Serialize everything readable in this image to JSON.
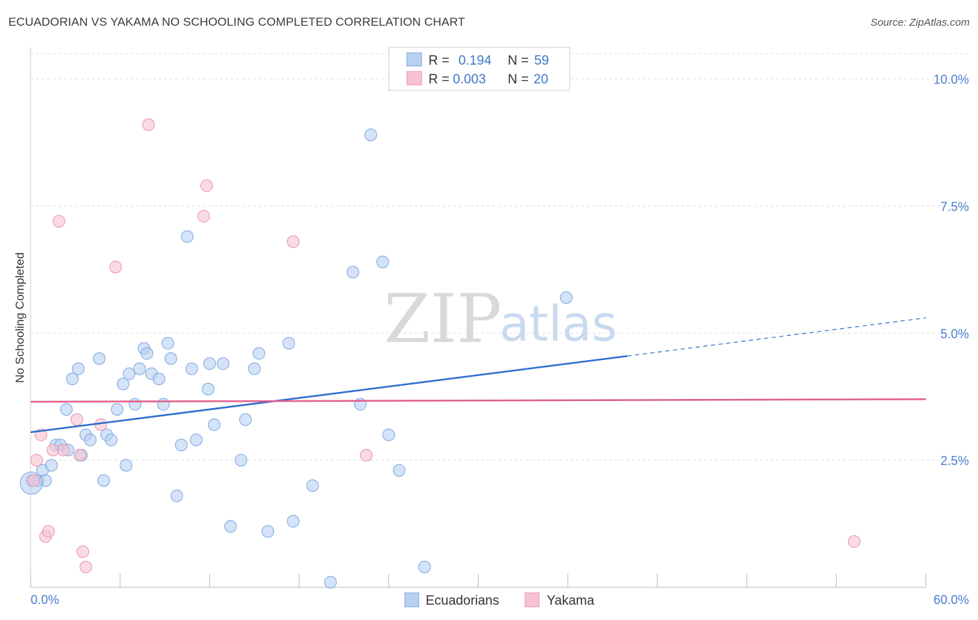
{
  "header": {
    "title": "ECUADORIAN VS YAKAMA NO SCHOOLING COMPLETED CORRELATION CHART",
    "source": "Source: ZipAtlas.com"
  },
  "watermark": {
    "zip": "ZIP",
    "atlas": "atlas"
  },
  "colors": {
    "blue_fill": "#b8d1f2",
    "blue_stroke": "#7ba6e0",
    "blue_line": "#2f6fd0",
    "pink_fill": "#f7c3d2",
    "pink_stroke": "#e892ab",
    "pink_line": "#e0608a",
    "grid": "#dddddd",
    "tick_text": "#4a7fd0"
  },
  "legend": {
    "rows": [
      {
        "r_label": "R =",
        "r_value": "0.194",
        "n_label": "N =",
        "n_value": "59"
      },
      {
        "r_label": "R =",
        "r_value": "0.003",
        "n_label": "N =",
        "n_value": "20"
      }
    ]
  },
  "bottom_legend": {
    "series1": "Ecuadorians",
    "series2": "Yakama"
  },
  "chart_data": {
    "type": "scatter",
    "title": "ECUADORIAN VS YAKAMA NO SCHOOLING COMPLETED CORRELATION CHART",
    "xlabel": "",
    "ylabel": "No Schooling Completed",
    "xlim": [
      0,
      60
    ],
    "ylim": [
      0,
      10.5
    ],
    "x_tick_labels": [
      "0.0%",
      "60.0%"
    ],
    "y_ticks": [
      {
        "value": 2.5,
        "label": "2.5%"
      },
      {
        "value": 5.0,
        "label": "5.0%"
      },
      {
        "value": 7.5,
        "label": "7.5%"
      },
      {
        "value": 10.0,
        "label": "10.0%"
      }
    ],
    "series": [
      {
        "name": "Ecuadorians",
        "R": 0.194,
        "N": 59,
        "trend": {
          "x0": 0,
          "y0": 3.05,
          "x1": 40,
          "y1": 4.55,
          "dash_x1": 60,
          "dash_y1": 5.3
        },
        "points": [
          [
            0.1,
            2.1
          ],
          [
            0.5,
            2.1
          ],
          [
            0.8,
            2.3
          ],
          [
            1.0,
            2.1
          ],
          [
            1.4,
            2.4
          ],
          [
            1.7,
            2.8
          ],
          [
            2.0,
            2.8
          ],
          [
            2.4,
            3.5
          ],
          [
            2.5,
            2.7
          ],
          [
            2.8,
            4.1
          ],
          [
            3.2,
            4.3
          ],
          [
            3.4,
            2.6
          ],
          [
            3.7,
            3.0
          ],
          [
            4.0,
            2.9
          ],
          [
            4.6,
            4.5
          ],
          [
            4.9,
            2.1
          ],
          [
            5.1,
            3.0
          ],
          [
            5.4,
            2.9
          ],
          [
            5.8,
            3.5
          ],
          [
            6.2,
            4.0
          ],
          [
            6.4,
            2.4
          ],
          [
            6.6,
            4.2
          ],
          [
            7.0,
            3.6
          ],
          [
            7.3,
            4.3
          ],
          [
            7.6,
            4.7
          ],
          [
            7.8,
            4.6
          ],
          [
            8.1,
            4.2
          ],
          [
            8.6,
            4.1
          ],
          [
            8.9,
            3.6
          ],
          [
            9.2,
            4.8
          ],
          [
            9.4,
            4.5
          ],
          [
            9.8,
            1.8
          ],
          [
            10.1,
            2.8
          ],
          [
            10.5,
            6.9
          ],
          [
            10.8,
            4.3
          ],
          [
            11.1,
            2.9
          ],
          [
            11.9,
            3.9
          ],
          [
            12.0,
            4.4
          ],
          [
            12.3,
            3.2
          ],
          [
            12.9,
            4.4
          ],
          [
            13.4,
            1.2
          ],
          [
            14.1,
            2.5
          ],
          [
            14.4,
            3.3
          ],
          [
            15.0,
            4.3
          ],
          [
            15.3,
            4.6
          ],
          [
            15.9,
            1.1
          ],
          [
            17.3,
            4.8
          ],
          [
            17.6,
            1.3
          ],
          [
            18.9,
            2.0
          ],
          [
            20.1,
            0.1
          ],
          [
            21.6,
            6.2
          ],
          [
            22.1,
            3.6
          ],
          [
            22.8,
            8.9
          ],
          [
            23.6,
            6.4
          ],
          [
            24.0,
            3.0
          ],
          [
            24.7,
            2.3
          ],
          [
            26.4,
            0.4
          ],
          [
            35.9,
            5.7
          ],
          [
            0.05,
            2.05
          ]
        ]
      },
      {
        "name": "Yakama",
        "R": 0.003,
        "N": 20,
        "trend": {
          "x0": 0,
          "y0": 3.65,
          "x1": 60,
          "y1": 3.7
        },
        "points": [
          [
            0.2,
            2.1
          ],
          [
            0.4,
            2.5
          ],
          [
            0.7,
            3.0
          ],
          [
            1.0,
            1.0
          ],
          [
            1.2,
            1.1
          ],
          [
            1.5,
            2.7
          ],
          [
            1.9,
            7.2
          ],
          [
            2.2,
            2.7
          ],
          [
            3.1,
            3.3
          ],
          [
            3.3,
            2.6
          ],
          [
            3.5,
            0.7
          ],
          [
            3.7,
            0.4
          ],
          [
            4.7,
            3.2
          ],
          [
            5.7,
            6.3
          ],
          [
            7.9,
            9.1
          ],
          [
            11.6,
            7.3
          ],
          [
            11.8,
            7.9
          ],
          [
            17.6,
            6.8
          ],
          [
            22.5,
            2.6
          ],
          [
            55.2,
            0.9
          ]
        ]
      }
    ]
  }
}
